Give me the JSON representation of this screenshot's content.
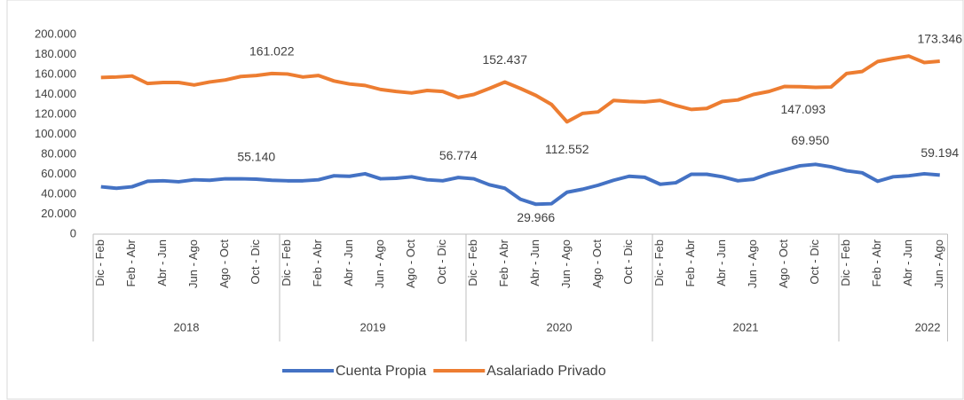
{
  "chart_data": {
    "type": "line",
    "categories": [
      "Dic - Feb",
      null,
      "Feb - Abr",
      null,
      "Abr - Jun",
      null,
      "Jun - Ago",
      null,
      "Ago - Oct",
      null,
      "Oct - Dic",
      null,
      "Dic - Feb",
      null,
      "Feb - Abr",
      null,
      "Abr - Jun",
      null,
      "Jun - Ago",
      null,
      "Ago - Oct",
      null,
      "Oct - Dic",
      null,
      "Dic - Feb",
      null,
      "Feb - Abr",
      null,
      "Abr - Jun",
      null,
      "Jun - Ago",
      null,
      "Ago - Oct",
      null,
      "Oct - Dic",
      null,
      "Dic - Feb",
      null,
      "Feb - Abr",
      null,
      "Abr - Jun",
      null,
      "Jun - Ago",
      null,
      "Ago - Oct",
      null,
      "Oct - Dic",
      null,
      "Dic - Feb",
      null,
      "Feb - Abr",
      null,
      "Abr - Jun",
      null,
      "Jun - Ago"
    ],
    "groups": [
      "2018",
      "2019",
      "2020",
      "2021",
      "2022"
    ],
    "series": [
      {
        "name": "Cuenta Propia",
        "color": "#4472c4",
        "values": [
          47.5,
          46.0,
          47.5,
          53.0,
          53.5,
          52.5,
          54.5,
          54.0,
          55.5,
          55.5,
          55.14,
          54.0,
          53.5,
          53.5,
          54.5,
          58.5,
          58.0,
          60.5,
          55.5,
          56.0,
          57.5,
          54.5,
          53.5,
          56.774,
          55.5,
          49.5,
          46.0,
          35.0,
          29.966,
          30.5,
          42.0,
          45.0,
          49.0,
          54.0,
          58.0,
          57.0,
          50.0,
          51.5,
          60.0,
          60.0,
          57.5,
          53.5,
          55.0,
          60.5,
          64.5,
          68.5,
          69.95,
          67.5,
          63.5,
          61.5,
          53.0,
          57.5,
          58.5,
          60.5,
          59.194
        ],
        "value_labels": [
          null,
          null,
          null,
          null,
          null,
          null,
          null,
          null,
          null,
          null,
          "55.140",
          null,
          null,
          null,
          null,
          null,
          null,
          null,
          null,
          null,
          null,
          null,
          null,
          "56.774",
          null,
          null,
          null,
          null,
          "29.966",
          null,
          null,
          null,
          null,
          null,
          null,
          null,
          null,
          null,
          null,
          null,
          null,
          null,
          null,
          null,
          null,
          null,
          "69.950",
          null,
          null,
          null,
          null,
          null,
          null,
          null,
          "59.194"
        ]
      },
      {
        "name": "Asalariado Privado",
        "color": "#ed7d31",
        "values": [
          157.0,
          157.5,
          158.5,
          151.0,
          152.0,
          152.0,
          149.5,
          152.5,
          154.5,
          158.0,
          159.0,
          161.022,
          160.5,
          157.5,
          159.0,
          153.5,
          150.5,
          149.0,
          145.0,
          143.0,
          141.5,
          144.0,
          143.0,
          137.0,
          140.0,
          146.0,
          152.437,
          146.0,
          139.0,
          130.0,
          112.552,
          121.0,
          122.5,
          134.0,
          133.0,
          132.5,
          134.0,
          129.0,
          125.0,
          126.0,
          133.0,
          134.5,
          140.0,
          143.0,
          148.0,
          147.8,
          147.093,
          147.5,
          161.0,
          163.0,
          173.0,
          176.0,
          178.5,
          172.0,
          173.346
        ],
        "value_labels": [
          null,
          null,
          null,
          null,
          null,
          null,
          null,
          null,
          null,
          null,
          null,
          "161.022",
          null,
          null,
          null,
          null,
          null,
          null,
          null,
          null,
          null,
          null,
          null,
          null,
          null,
          null,
          "152.437",
          null,
          null,
          null,
          "112.552",
          null,
          null,
          null,
          null,
          null,
          null,
          null,
          null,
          null,
          null,
          null,
          null,
          null,
          null,
          null,
          "147.093",
          null,
          null,
          null,
          null,
          null,
          null,
          null,
          "173.346"
        ]
      }
    ],
    "ylim": [
      0,
      200
    ],
    "yticks": [
      0,
      {
        "value": 20,
        "label": "20.000"
      },
      {
        "value": 40,
        "label": "40.000"
      },
      {
        "value": 60,
        "label": "60.000"
      },
      {
        "value": 80,
        "label": "80.000"
      },
      {
        "value": 100,
        "label": "100.000"
      },
      {
        "value": 120,
        "label": "120.000"
      },
      {
        "value": 140,
        "label": "140.000"
      },
      {
        "value": 160,
        "label": "160.000"
      },
      {
        "value": 180,
        "label": "180.000"
      },
      {
        "value": 200,
        "label": "200.000"
      }
    ],
    "legend": "bottom"
  }
}
